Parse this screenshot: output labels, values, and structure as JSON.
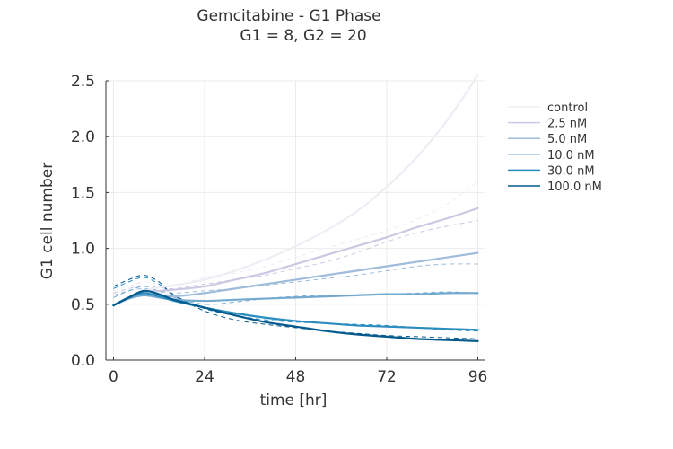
{
  "chart_data": {
    "type": "line",
    "title": "Gemcitabine - G1 Phase",
    "subtitle": "G1 = 8, G2 = 20",
    "xlabel": "time [hr]",
    "ylabel": "G1 cell number",
    "xlim": [
      -2,
      98
    ],
    "ylim": [
      0,
      2.5
    ],
    "xticks": [
      0,
      24,
      48,
      72,
      96
    ],
    "yticks": [
      0.0,
      0.5,
      1.0,
      1.5,
      2.0,
      2.5
    ],
    "ytick_labels": [
      "0.0",
      "0.5",
      "1.0",
      "1.5",
      "2.0",
      "2.5"
    ],
    "grid": true,
    "legend_position": "right",
    "x": [
      0,
      4,
      8,
      12,
      16,
      24,
      32,
      40,
      48,
      56,
      64,
      72,
      80,
      88,
      96
    ],
    "series": [
      {
        "name": "control",
        "color": "#ededf4",
        "values": [
          0.49,
          0.56,
          0.62,
          0.65,
          0.67,
          0.72,
          0.8,
          0.9,
          1.02,
          1.16,
          1.33,
          1.55,
          1.82,
          2.15,
          2.55
        ],
        "observed": [
          0.62,
          0.66,
          0.7,
          0.68,
          0.66,
          0.74,
          0.78,
          0.84,
          0.92,
          1.0,
          1.08,
          1.16,
          1.26,
          1.4,
          1.6
        ]
      },
      {
        "name": "2.5 nM",
        "color": "#cbc9e2",
        "values": [
          0.49,
          0.56,
          0.61,
          0.62,
          0.63,
          0.66,
          0.72,
          0.78,
          0.86,
          0.94,
          1.02,
          1.1,
          1.19,
          1.27,
          1.36
        ],
        "observed": [
          0.6,
          0.64,
          0.66,
          0.65,
          0.64,
          0.68,
          0.72,
          0.76,
          0.82,
          0.88,
          0.96,
          1.06,
          1.14,
          1.2,
          1.25
        ]
      },
      {
        "name": "5.0 nM",
        "color": "#9ebcda",
        "values": [
          0.49,
          0.55,
          0.59,
          0.58,
          0.57,
          0.6,
          0.64,
          0.68,
          0.72,
          0.76,
          0.8,
          0.84,
          0.88,
          0.92,
          0.96
        ],
        "observed": [
          0.58,
          0.62,
          0.64,
          0.62,
          0.6,
          0.62,
          0.64,
          0.67,
          0.7,
          0.73,
          0.76,
          0.8,
          0.84,
          0.86,
          0.86
        ]
      },
      {
        "name": "10.0 nM",
        "color": "#74a9cf",
        "values": [
          0.49,
          0.55,
          0.58,
          0.56,
          0.54,
          0.53,
          0.54,
          0.55,
          0.56,
          0.57,
          0.58,
          0.59,
          0.59,
          0.6,
          0.6
        ],
        "observed": [
          0.56,
          0.62,
          0.66,
          0.62,
          0.56,
          0.5,
          0.52,
          0.55,
          0.57,
          0.58,
          0.58,
          0.59,
          0.6,
          0.61,
          0.6
        ]
      },
      {
        "name": "30.0 nM",
        "color": "#2b8cbe",
        "values": [
          0.49,
          0.56,
          0.6,
          0.57,
          0.53,
          0.47,
          0.42,
          0.38,
          0.35,
          0.33,
          0.31,
          0.3,
          0.29,
          0.28,
          0.27
        ],
        "observed": [
          0.64,
          0.7,
          0.74,
          0.68,
          0.58,
          0.46,
          0.4,
          0.36,
          0.34,
          0.33,
          0.32,
          0.31,
          0.29,
          0.27,
          0.26
        ]
      },
      {
        "name": "100.0 nM",
        "color": "#045a8d",
        "values": [
          0.49,
          0.56,
          0.62,
          0.59,
          0.54,
          0.47,
          0.4,
          0.34,
          0.3,
          0.26,
          0.23,
          0.21,
          0.19,
          0.18,
          0.17
        ],
        "observed": [
          0.66,
          0.72,
          0.76,
          0.7,
          0.58,
          0.44,
          0.36,
          0.32,
          0.29,
          0.26,
          0.24,
          0.22,
          0.21,
          0.2,
          0.19
        ]
      }
    ]
  }
}
